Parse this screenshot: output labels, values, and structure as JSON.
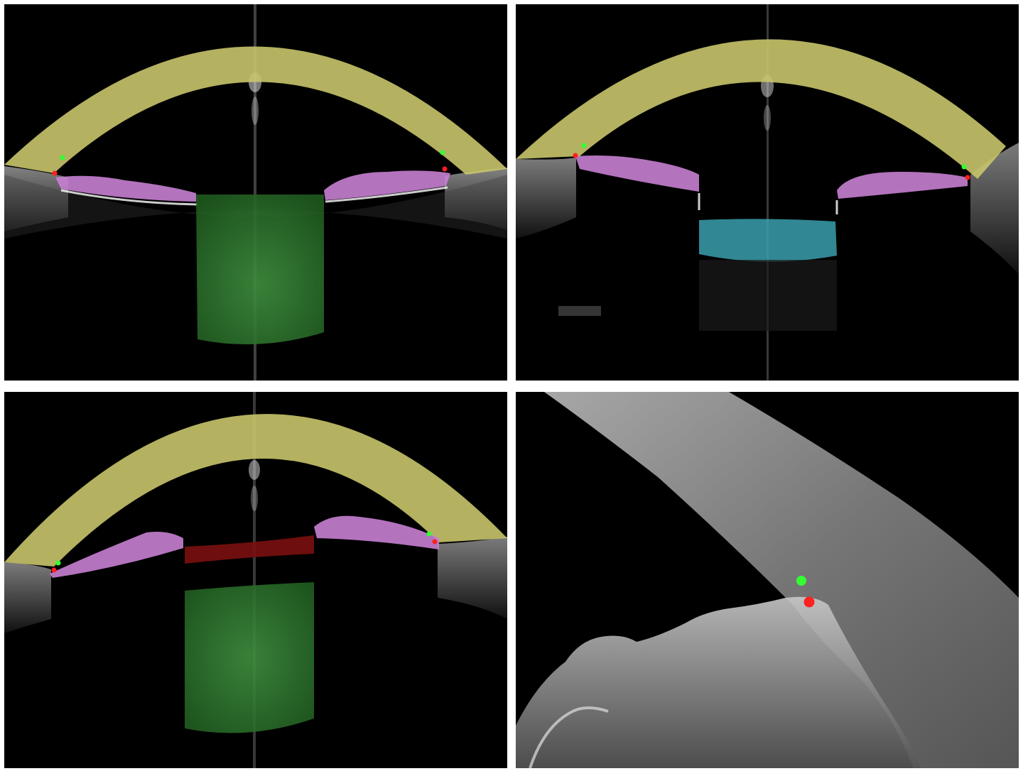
{
  "figure": {
    "panels": [
      {
        "id": "panel-a",
        "segments": [
          "cornea",
          "iris-left",
          "iris-right",
          "lens"
        ],
        "colors": {
          "cornea": "#c8c46a",
          "iris": "#c77fd1",
          "lens": "#2e7d2e",
          "landmark_green": "#33ff33",
          "landmark_red": "#ff2020"
        }
      },
      {
        "id": "panel-b",
        "segments": [
          "cornea",
          "iris-left",
          "iris-right",
          "lens-cyan"
        ],
        "colors": {
          "cornea": "#c8c46a",
          "iris": "#c77fd1",
          "lens": "#3a9fae",
          "landmark_green": "#33ff33",
          "landmark_red": "#ff2020"
        }
      },
      {
        "id": "panel-c",
        "segments": [
          "cornea",
          "iris-left",
          "iris-right",
          "lens-red",
          "lens-green"
        ],
        "colors": {
          "cornea": "#c8c46a",
          "iris": "#c77fd1",
          "lens_red": "#7a1010",
          "lens_green": "#2e7d2e",
          "landmark_green": "#33ff33",
          "landmark_red": "#ff2020"
        }
      },
      {
        "id": "panel-d",
        "segments": [
          "angle-closeup"
        ],
        "colors": {
          "tissue": "#8c8c8c",
          "landmark_green": "#33ff33",
          "landmark_red": "#ff2020"
        }
      }
    ]
  }
}
